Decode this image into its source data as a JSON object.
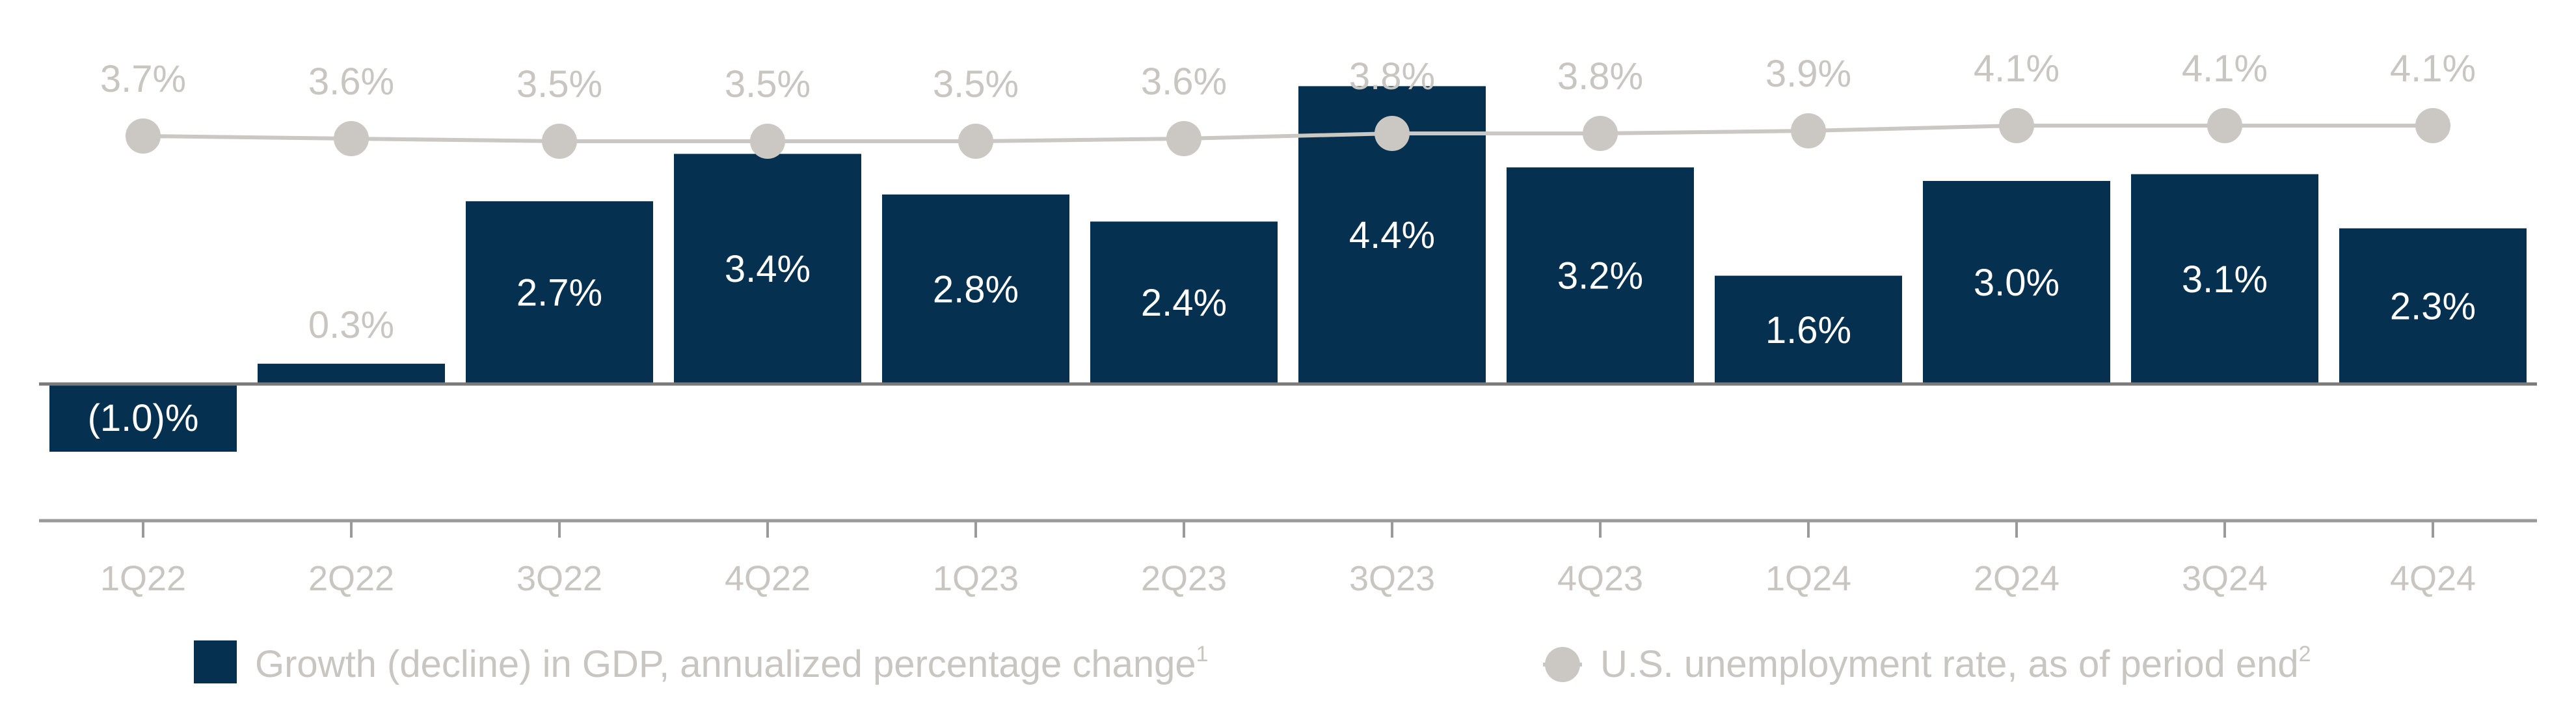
{
  "chart_data": {
    "type": "bar",
    "categories": [
      "1Q22",
      "2Q22",
      "3Q22",
      "4Q22",
      "1Q23",
      "2Q23",
      "3Q23",
      "4Q23",
      "1Q24",
      "2Q24",
      "3Q24",
      "4Q24"
    ],
    "series": [
      {
        "name": "Growth (decline) in GDP, annualized percentage change",
        "name_superscript": "1",
        "type": "bar",
        "values": [
          -1.0,
          0.3,
          2.7,
          3.4,
          2.8,
          2.4,
          4.4,
          3.2,
          1.6,
          3.0,
          3.1,
          2.3
        ],
        "labels": [
          "(1.0)%",
          "0.3%",
          "2.7%",
          "3.4%",
          "2.8%",
          "2.4%",
          "4.4%",
          "3.2%",
          "1.6%",
          "3.0%",
          "3.1%",
          "2.3%"
        ],
        "color": "#06304f"
      },
      {
        "name": "U.S. unemployment rate, as of period end",
        "name_superscript": "2",
        "type": "line",
        "values": [
          3.7,
          3.6,
          3.5,
          3.5,
          3.5,
          3.6,
          3.8,
          3.8,
          3.9,
          4.1,
          4.1,
          4.1
        ],
        "labels": [
          "3.7%",
          "3.6%",
          "3.5%",
          "3.5%",
          "3.5%",
          "3.6%",
          "3.8%",
          "3.8%",
          "3.9%",
          "4.1%",
          "4.1%",
          "4.1%"
        ],
        "color": "#cbc7c3"
      }
    ],
    "axis_color": "#9a9a9a",
    "label_color": "#c9c5c1",
    "legend_placement": "bottom",
    "grid": false
  }
}
